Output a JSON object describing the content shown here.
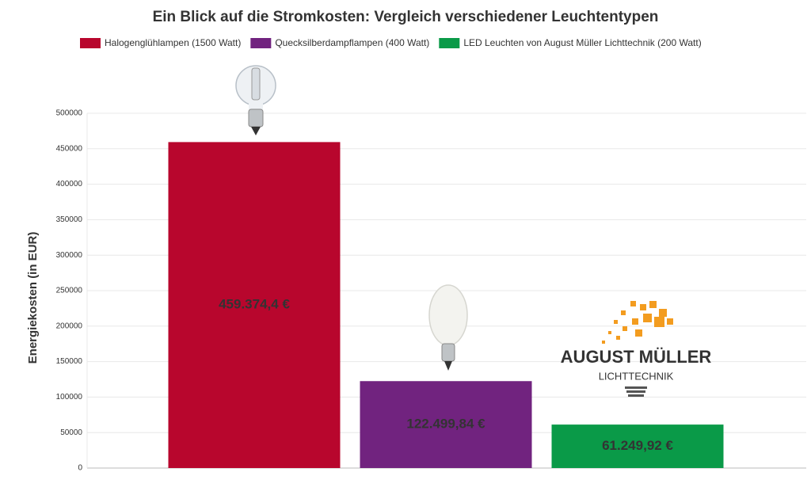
{
  "chart_data": {
    "type": "bar",
    "title": "Ein Blick auf die Stromkosten: Vergleich verschiedener Leuchtentypen",
    "y_label": "Energiekosten (in EUR)",
    "categories": [
      null
    ],
    "series": [
      {
        "name": "Halogenglühlampen (1500 Watt)",
        "color": "#b8062d",
        "values": [
          459374.4
        ],
        "value_labels": [
          "459.374,4 €"
        ]
      },
      {
        "name": "Quecksilberdampflampen (400 Watt)",
        "color": "#71237f",
        "values": [
          122499.84
        ],
        "value_labels": [
          "122.499,84 €"
        ]
      },
      {
        "name": "LED Leuchten von August Müller Lichttechnik (200 Watt)",
        "color": "#0a9a48",
        "values": [
          61249.92
        ],
        "value_labels": [
          "61.249,92 €"
        ]
      }
    ],
    "ylim": [
      0,
      500000
    ],
    "yticks": [
      0,
      50000,
      100000,
      150000,
      200000,
      250000,
      300000,
      350000,
      400000,
      450000,
      500000
    ],
    "grid": true,
    "legend": "top",
    "logo": {
      "name": "AUGUST MÜLLER",
      "tagline": "LICHTTECHNIK"
    }
  }
}
